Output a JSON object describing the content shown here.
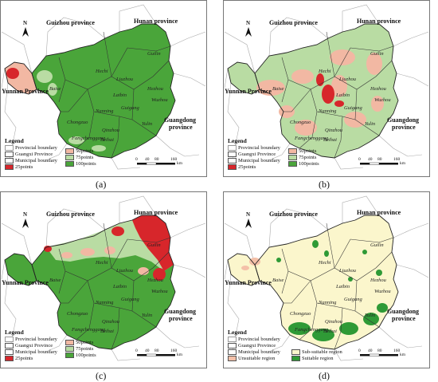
{
  "panels": [
    {
      "label": "(a)",
      "fill": "#4aa53a",
      "legend": {
        "title": "Legend",
        "items": [
          "Provincial boundary",
          "Guangxi Province",
          "Municipal boundary",
          "25points",
          "50points",
          "75points",
          "100points"
        ]
      }
    },
    {
      "label": "(b)",
      "fill": "#b9dca3",
      "legend": {
        "title": "Legend",
        "items": [
          "Provincial boundary",
          "Guangxi Province",
          "Municipal boundary",
          "25points",
          "50points",
          "75points",
          "100points"
        ]
      }
    },
    {
      "label": "(c)",
      "fill": "#4aa53a",
      "legend": {
        "title": "Legend",
        "items": [
          "Provincial boundary",
          "Guangxi Province",
          "Municipal boundary",
          "25points",
          "50points",
          "75points",
          "100points"
        ]
      }
    },
    {
      "label": "(d)",
      "fill": "#fbf6cc",
      "legend": {
        "title": "Legend",
        "items": [
          "Provincial boundary",
          "Guangxi Province",
          "Municipal boundary",
          "Unsuitable region",
          "Sub-suitable region",
          "Suitable region"
        ]
      }
    }
  ],
  "provinces": {
    "guizhou": "Guizhou province",
    "hunan": "Hunan province",
    "yunnan": "Yunnan Province",
    "guangdong_1": "Guangdong",
    "guangdong_2": "province"
  },
  "cities": [
    "Guilin",
    "Hechi",
    "Liuzhou",
    "Hezhou",
    "Baise",
    "Laibin",
    "Wuzhou",
    "Nanning",
    "Guigang",
    "Chongzuo",
    "Yulin",
    "Qinzhou",
    "Fangchenggang",
    "Beihai"
  ],
  "north_label": "N",
  "scale": {
    "ticks": [
      "0",
      "40",
      "80",
      "160"
    ],
    "unit": "km"
  },
  "colors": {
    "p25": "#d7262b",
    "p50": "#f2b8a3",
    "p75": "#b9dca3",
    "p100": "#4aa53a",
    "unsuitable": "#f4c0a8",
    "subsuitable": "#fbf6cc",
    "suitable": "#2f9a36"
  }
}
